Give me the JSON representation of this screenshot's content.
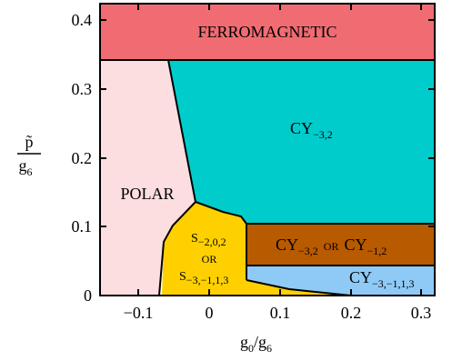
{
  "diagram": {
    "colors": {
      "ferromagnetic": "#f06c72",
      "polar": "#fcdde0",
      "cy32": "#00cccc",
      "s_region": "#ffd000",
      "cy32_or_cy12": "#b85a00",
      "cy3113": "#8fcaf7"
    },
    "regions": {
      "ferromagnetic": "FERROMAGNETIC",
      "polar": "POLAR",
      "cy32": {
        "base": "CY",
        "sub": "−3,2"
      },
      "s_region": {
        "line1_base": "S",
        "line1_sub": "−2,0,2",
        "or": "OR",
        "line2_base": "S",
        "line2_sub": "−3,−1,1,3"
      },
      "cy32_or_cy12": {
        "a_base": "CY",
        "a_sub": "−3,2",
        "or": "OR",
        "b_base": "CY",
        "b_sub": "−1,2"
      },
      "cy3113": {
        "base": "CY",
        "sub": "−3,−1,1,3"
      }
    },
    "x_axis": {
      "label_base": "g",
      "label_sub": "0",
      "label_slash": "/",
      "label_base2": "g",
      "label_sub2": "6",
      "ticks": [
        "−0.1",
        "0",
        "0.1",
        "0.2",
        "0.3"
      ]
    },
    "y_axis": {
      "label_num": "p̃",
      "label_den_base": "g",
      "label_den_sub": "6",
      "ticks": [
        "0",
        "0.1",
        "0.2",
        "0.3",
        "0.4"
      ]
    }
  }
}
